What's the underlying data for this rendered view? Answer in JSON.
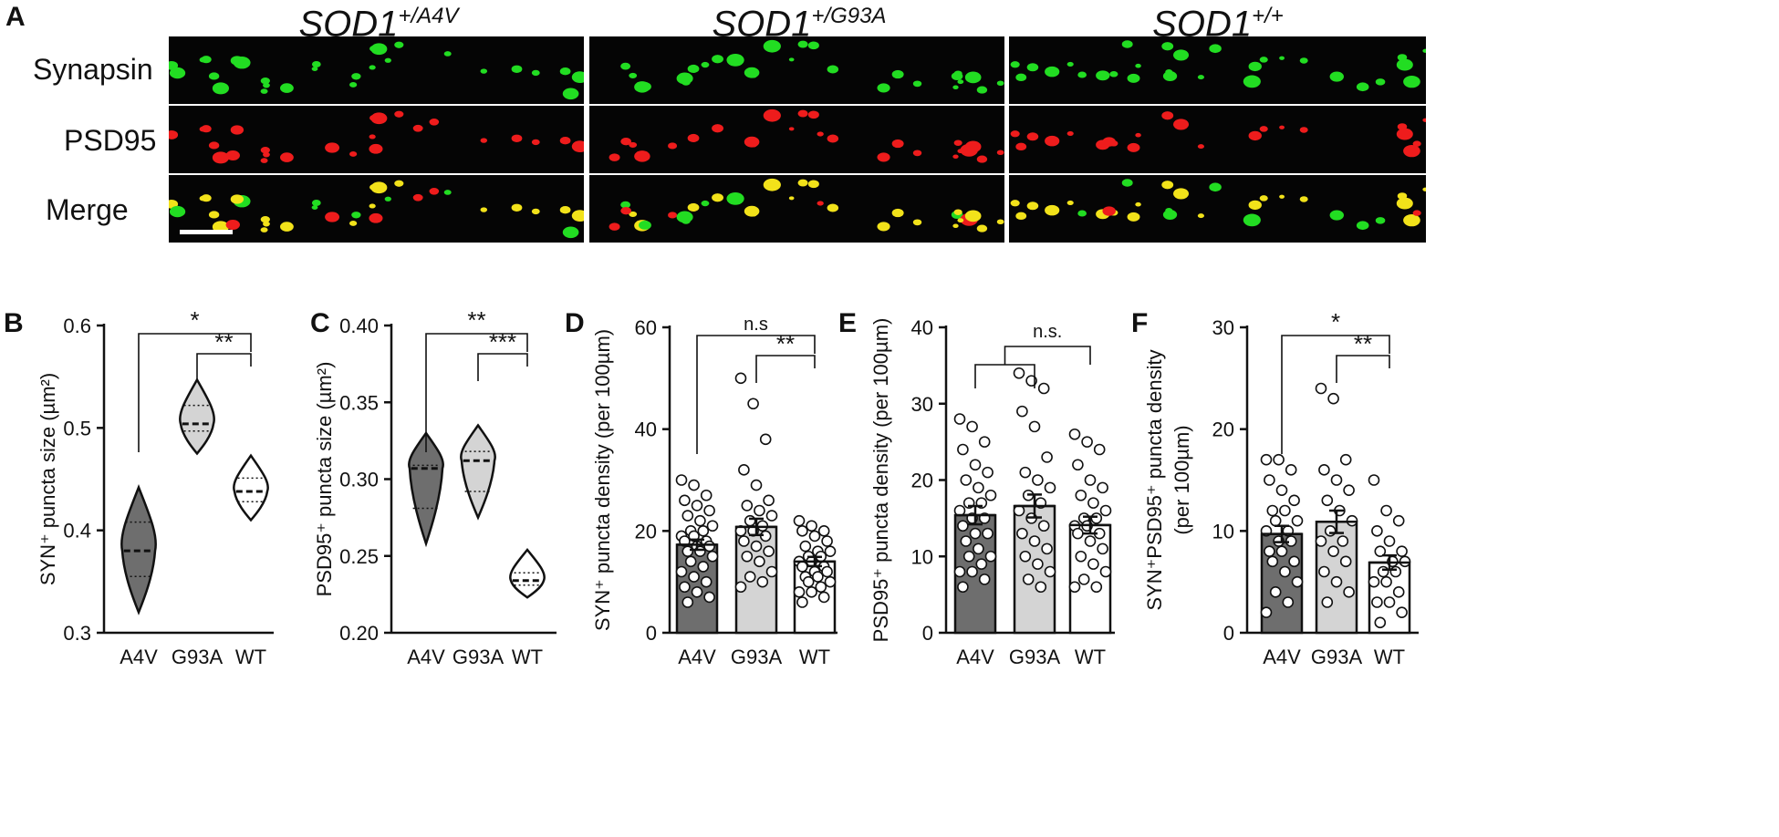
{
  "panel_a": {
    "letter": "A",
    "columns": [
      {
        "base": "SOD1",
        "sup": "+/A4V"
      },
      {
        "base": "SOD1",
        "sup": "+/G93A"
      },
      {
        "base": "SOD1",
        "sup": "+/+"
      }
    ],
    "rows": [
      "Synapsin",
      "PSD95",
      "Merge"
    ],
    "colors": {
      "synapsin": "#22dd22",
      "psd95": "#ee1c1c",
      "merge": "#f2e21a",
      "background": "#050505"
    }
  },
  "chart_data": [
    {
      "id": "B",
      "letter": "B",
      "type": "violin",
      "ylabel": "SYN⁺ puncta  size (µm²)",
      "ylim": [
        0.3,
        0.6
      ],
      "yticks": [
        "0.3",
        "0.4",
        "0.5",
        "0.6"
      ],
      "categories": [
        "A4V",
        "G93A",
        "WT"
      ],
      "colors": [
        "#6e6e6e",
        "#d4d4d4",
        "#ffffff"
      ],
      "series": [
        {
          "median": 0.38,
          "q1": 0.355,
          "q3": 0.408,
          "min": 0.32,
          "max": 0.442
        },
        {
          "median": 0.504,
          "q1": 0.497,
          "q3": 0.522,
          "min": 0.475,
          "max": 0.547
        },
        {
          "median": 0.438,
          "q1": 0.428,
          "q3": 0.451,
          "min": 0.41,
          "max": 0.473
        }
      ],
      "significance": [
        {
          "from": "A4V",
          "to": "WT",
          "label": "*"
        },
        {
          "from": "G93A",
          "to": "WT",
          "label": "**"
        }
      ]
    },
    {
      "id": "C",
      "letter": "C",
      "type": "violin",
      "ylabel": "PSD95⁺ puncta size (µm²)",
      "ylim": [
        0.2,
        0.4
      ],
      "yticks": [
        "0.20",
        "0.25",
        "0.30",
        "0.35",
        "0.40"
      ],
      "categories": [
        "A4V",
        "G93A",
        "WT"
      ],
      "colors": [
        "#6e6e6e",
        "#d4d4d4",
        "#ffffff"
      ],
      "series": [
        {
          "median": 0.307,
          "q1": 0.281,
          "q3": 0.309,
          "min": 0.258,
          "max": 0.33
        },
        {
          "median": 0.312,
          "q1": 0.292,
          "q3": 0.318,
          "min": 0.275,
          "max": 0.335
        },
        {
          "median": 0.234,
          "q1": 0.231,
          "q3": 0.239,
          "min": 0.223,
          "max": 0.254
        }
      ],
      "significance": [
        {
          "from": "A4V",
          "to": "WT",
          "label": "**"
        },
        {
          "from": "G93A",
          "to": "WT",
          "label": "***"
        }
      ]
    },
    {
      "id": "D",
      "letter": "D",
      "type": "bar",
      "ylabel": "SYN⁺ puncta density (per 100µm)",
      "ylim": [
        0,
        60
      ],
      "yticks": [
        "0",
        "20",
        "40",
        "60"
      ],
      "categories": [
        "A4V",
        "G93A",
        "WT"
      ],
      "colors": [
        "#6e6e6e",
        "#d4d4d4",
        "#ffffff"
      ],
      "values": [
        17.3,
        20.8,
        14.0
      ],
      "sem": [
        1.0,
        1.6,
        0.9
      ],
      "points": [
        [
          30,
          29,
          27,
          26,
          25,
          24,
          23,
          22,
          21,
          20,
          20,
          19,
          19,
          18,
          18,
          17,
          17,
          16,
          16,
          15,
          14,
          13,
          12,
          11,
          10,
          9,
          8,
          7,
          6
        ],
        [
          50,
          45,
          38,
          32,
          29,
          26,
          25,
          24,
          23,
          22,
          21,
          20,
          20,
          19,
          18,
          17,
          16,
          15,
          14,
          12,
          11,
          10,
          9
        ],
        [
          22,
          21,
          20,
          20,
          19,
          18,
          17,
          16,
          16,
          15,
          15,
          14,
          14,
          13,
          13,
          12,
          12,
          11,
          11,
          10,
          10,
          9,
          8,
          8,
          7,
          6
        ]
      ],
      "significance": [
        {
          "from": "A4V",
          "to": "WT",
          "label": "n.s"
        },
        {
          "from": "G93A",
          "to": "WT",
          "label": "**"
        }
      ]
    },
    {
      "id": "E",
      "letter": "E",
      "type": "bar",
      "ylabel": "PSD95⁺ puncta density (per 100µm)",
      "ylim": [
        0,
        40
      ],
      "yticks": [
        "0",
        "10",
        "20",
        "30",
        "40"
      ],
      "categories": [
        "A4V",
        "G93A",
        "WT"
      ],
      "colors": [
        "#6e6e6e",
        "#d4d4d4",
        "#ffffff"
      ],
      "values": [
        15.4,
        16.6,
        14.1
      ],
      "sem": [
        1.2,
        1.5,
        1.1
      ],
      "points": [
        [
          28,
          27,
          25,
          24,
          22,
          21,
          20,
          19,
          18,
          17,
          17,
          16,
          15,
          15,
          14,
          13,
          13,
          12,
          11,
          10,
          10,
          9,
          8,
          8,
          7,
          6
        ],
        [
          34,
          33,
          32,
          29,
          27,
          23,
          21,
          20,
          19,
          18,
          17,
          16,
          15,
          14,
          13,
          12,
          11,
          10,
          9,
          8,
          7,
          6
        ],
        [
          26,
          25,
          24,
          22,
          20,
          19,
          18,
          17,
          16,
          15,
          15,
          14,
          14,
          13,
          13,
          12,
          11,
          10,
          9,
          8,
          7,
          6,
          6
        ]
      ],
      "significance_group": {
        "groups": [
          "A4V",
          "G93A"
        ],
        "to": "WT",
        "label": "n.s."
      }
    },
    {
      "id": "F",
      "letter": "F",
      "type": "bar",
      "ylabel_lines": [
        "SYN⁺PSD95⁺ puncta density",
        "(per 100µm)"
      ],
      "ylim": [
        0,
        30
      ],
      "yticks": [
        "0",
        "10",
        "20",
        "30"
      ],
      "categories": [
        "A4V",
        "G93A",
        "WT"
      ],
      "colors": [
        "#6e6e6e",
        "#d4d4d4",
        "#ffffff"
      ],
      "values": [
        9.7,
        10.9,
        6.9
      ],
      "sem": [
        0.8,
        1.1,
        0.7
      ],
      "points": [
        [
          17,
          17,
          16,
          15,
          14,
          13,
          12,
          12,
          11,
          11,
          10,
          10,
          9,
          9,
          8,
          8,
          7,
          7,
          6,
          5,
          4,
          3,
          2
        ],
        [
          24,
          23,
          17,
          16,
          15,
          14,
          13,
          12,
          11,
          10,
          9,
          9,
          8,
          7,
          6,
          5,
          4,
          3
        ],
        [
          15,
          12,
          11,
          10,
          9,
          8,
          8,
          7,
          7,
          6,
          6,
          5,
          5,
          4,
          3,
          3,
          2,
          1
        ]
      ],
      "significance": [
        {
          "from": "A4V",
          "to": "WT",
          "label": "*"
        },
        {
          "from": "G93A",
          "to": "WT",
          "label": "**"
        }
      ]
    }
  ]
}
